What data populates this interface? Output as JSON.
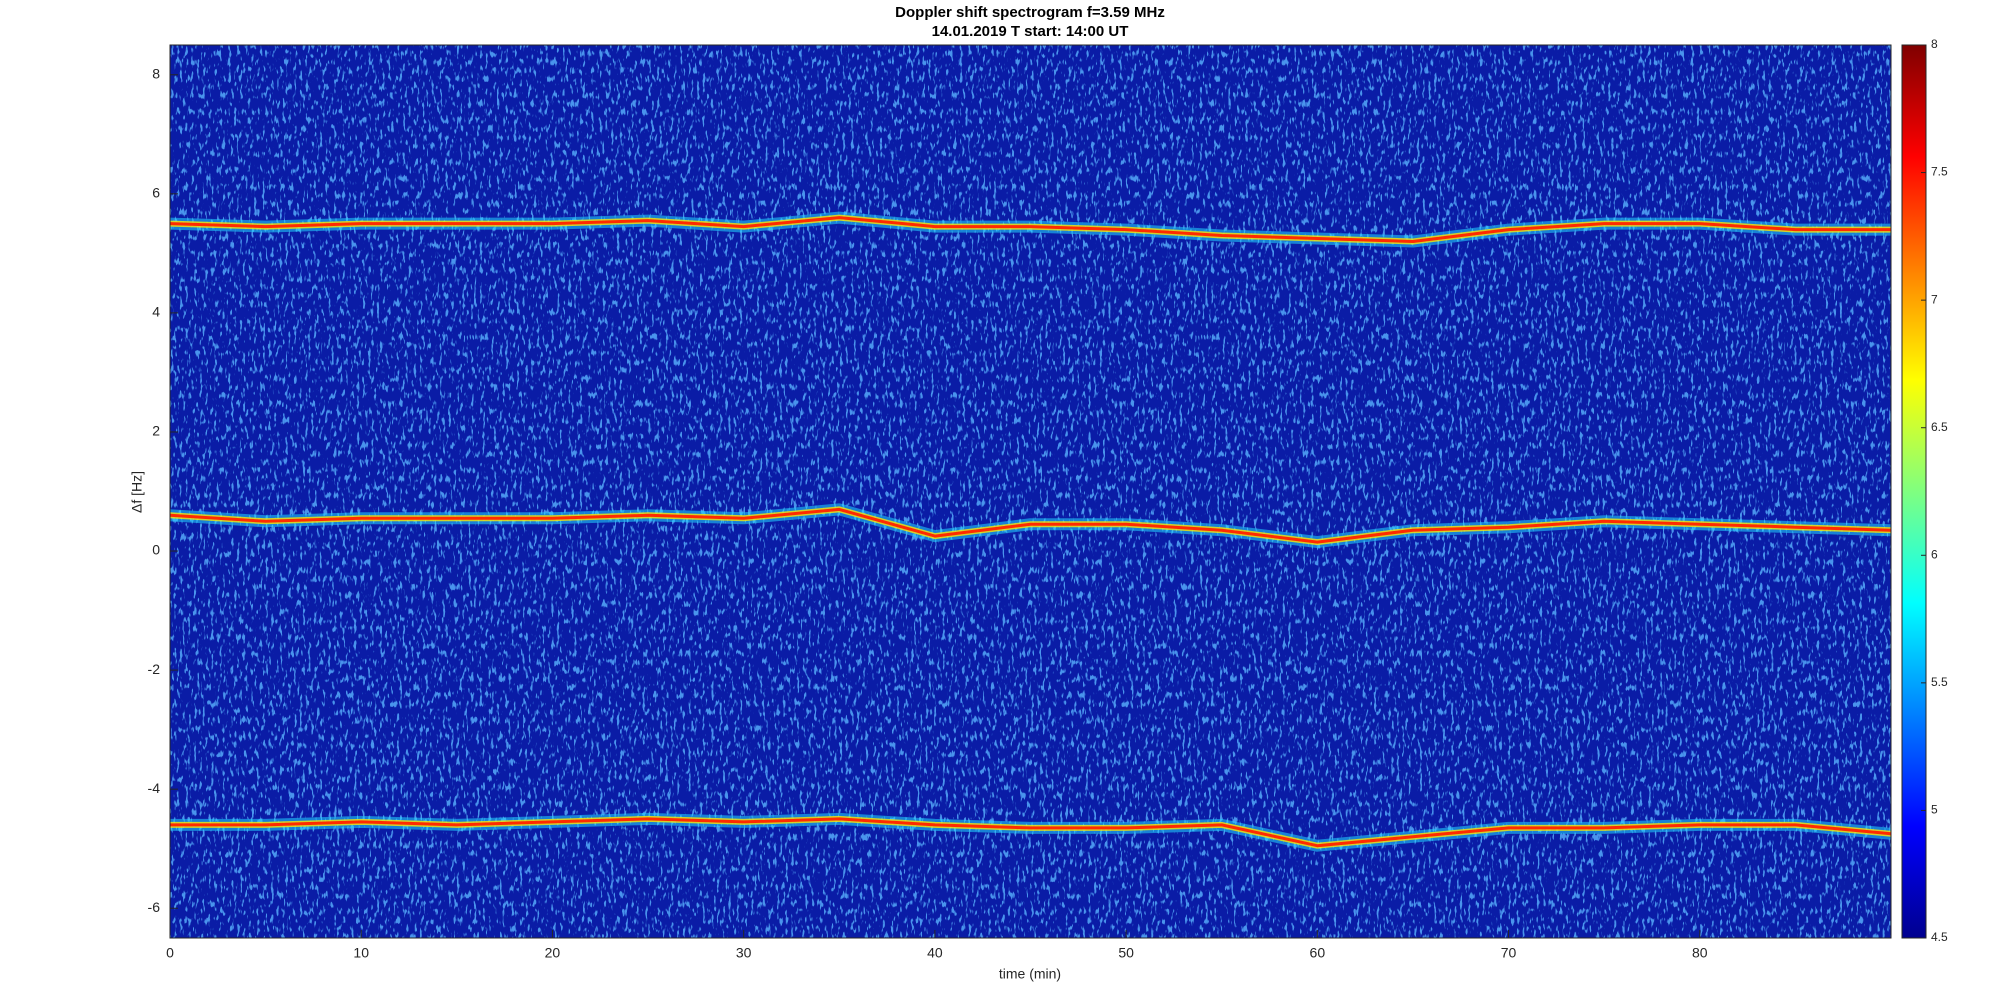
{
  "chart_data": {
    "type": "spectrogram",
    "title": "Doppler shift spectrogram f=3.59 MHz",
    "subtitle": "14.01.2019   T start: 14:00 UT",
    "xlabel": "time (min)",
    "ylabel": "Δf [Hz]",
    "x": [
      0,
      5,
      10,
      15,
      20,
      25,
      30,
      35,
      40,
      45,
      50,
      55,
      60,
      65,
      70,
      75,
      80,
      85,
      90
    ],
    "series": [
      {
        "color": "#ff2a00",
        "values": [
          5.5,
          5.45,
          5.5,
          5.5,
          5.5,
          5.55,
          5.45,
          5.6,
          5.45,
          5.45,
          5.4,
          5.3,
          5.25,
          5.2,
          5.4,
          5.5,
          5.5,
          5.4,
          5.4
        ]
      },
      {
        "color": "#ff2a00",
        "values": [
          0.6,
          0.5,
          0.55,
          0.55,
          0.55,
          0.6,
          0.55,
          0.7,
          0.25,
          0.45,
          0.45,
          0.35,
          0.15,
          0.35,
          0.4,
          0.5,
          0.45,
          0.4,
          0.35
        ]
      },
      {
        "color": "#ff2a00",
        "values": [
          -4.6,
          -4.6,
          -4.55,
          -4.6,
          -4.55,
          -4.5,
          -4.55,
          -4.5,
          -4.6,
          -4.65,
          -4.65,
          -4.6,
          -4.95,
          -4.8,
          -4.65,
          -4.65,
          -4.6,
          -4.6,
          -4.75
        ]
      }
    ],
    "background_color": "#0a1ca6",
    "xlim": [
      0,
      90
    ],
    "xticks": [
      0,
      10,
      20,
      30,
      40,
      50,
      60,
      70,
      80
    ],
    "ylim": [
      -6.5,
      8.5
    ],
    "yticks": [
      -6,
      -4,
      -2,
      0,
      2,
      4,
      6,
      8
    ],
    "colorbar": {
      "clim": [
        4.5,
        8
      ],
      "ticks": [
        4.5,
        5,
        5.5,
        6,
        6.5,
        7,
        7.5,
        8
      ],
      "colormap": "jet"
    }
  }
}
